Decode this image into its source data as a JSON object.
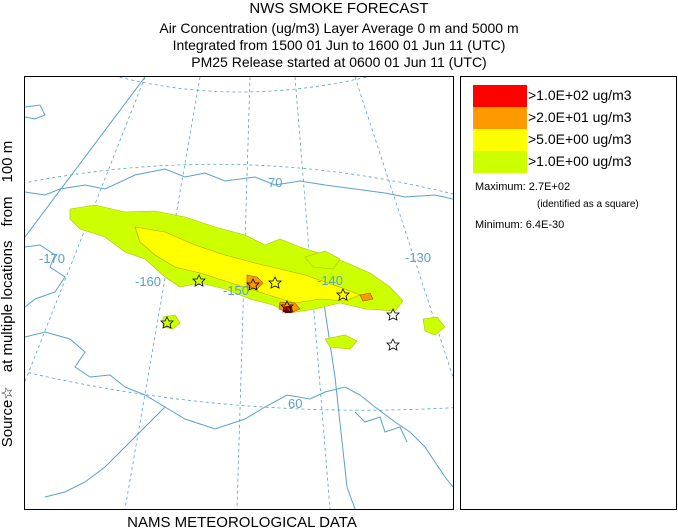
{
  "header": {
    "title": "NWS SMOKE FORECAST",
    "line2": "Air Concentration (ug/m3) Layer Average    0 m and  5000 m",
    "line3": "Integrated from 1500 01 Jun to 1600 01 Jun 11 (UTC)",
    "line4": "PM25 Release started at 0600 01 Jun 11 (UTC)"
  },
  "footer": "NAMS METEOROLOGICAL DATA",
  "side_label": {
    "source": "Source",
    "star": "☆",
    "multi": "at multiple locations",
    "from": "from",
    "height": "100 m"
  },
  "map": {
    "longitude_labels": [
      "-170",
      "-160",
      "-150",
      "-140",
      "-130"
    ],
    "latitude_labels": [
      "70",
      "60"
    ],
    "colors": {
      "coast": "#5aa0d0",
      "grid": "#5aa0d0",
      "level1": "#ccff00",
      "level2": "#ffff00",
      "level3": "#ff9900",
      "level4": "#ff0000"
    }
  },
  "legend": {
    "items": [
      {
        "label": ">1.0E+02 ug/m3",
        "color": "#ff0000"
      },
      {
        "label": ">2.0E+01 ug/m3",
        "color": "#ff9900"
      },
      {
        "label": ">5.0E+00 ug/m3",
        "color": "#ffff00"
      },
      {
        "label": ">1.0E+00 ug/m3",
        "color": "#ccff00"
      }
    ],
    "maximum": "Maximum: 2.7E+02",
    "maximum_note": "(identified as a square)",
    "minimum": "Minimum: 6.4E-30"
  }
}
